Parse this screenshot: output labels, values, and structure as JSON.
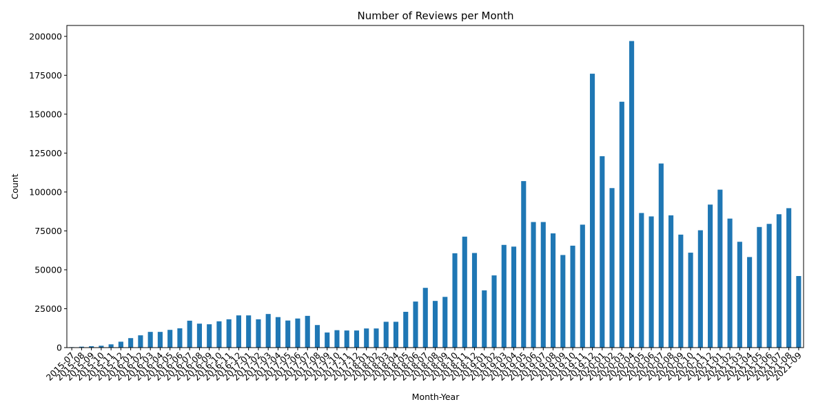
{
  "chart_data": {
    "type": "bar",
    "title": "Number of Reviews per Month",
    "xlabel": "Month-Year",
    "ylabel": "Count",
    "ylim": [
      0,
      207000
    ],
    "yticks": [
      0,
      25000,
      50000,
      75000,
      100000,
      125000,
      150000,
      175000,
      200000
    ],
    "grid": false,
    "bar_color": "#1f77b4",
    "categories": [
      "2015-07",
      "2015-08",
      "2015-09",
      "2015-10",
      "2015-11",
      "2015-12",
      "2016-01",
      "2016-02",
      "2016-03",
      "2016-04",
      "2016-05",
      "2016-06",
      "2016-07",
      "2016-08",
      "2016-09",
      "2016-10",
      "2016-11",
      "2016-12",
      "2017-01",
      "2017-02",
      "2017-03",
      "2017-04",
      "2017-05",
      "2017-06",
      "2017-07",
      "2017-08",
      "2017-09",
      "2017-10",
      "2017-11",
      "2017-12",
      "2018-01",
      "2018-02",
      "2018-03",
      "2018-04",
      "2018-05",
      "2018-06",
      "2018-07",
      "2018-08",
      "2018-09",
      "2018-10",
      "2018-11",
      "2018-12",
      "2019-01",
      "2019-02",
      "2019-03",
      "2019-04",
      "2019-05",
      "2019-06",
      "2019-07",
      "2019-08",
      "2019-09",
      "2019-10",
      "2019-11",
      "2019-12",
      "2020-01",
      "2020-02",
      "2020-03",
      "2020-04",
      "2020-05",
      "2020-06",
      "2020-07",
      "2020-08",
      "2020-09",
      "2020-10",
      "2020-11",
      "2020-12",
      "2021-01",
      "2021-02",
      "2021-03",
      "2021-04",
      "2021-05",
      "2021-06",
      "2021-07",
      "2021-08",
      "2021-09"
    ],
    "values": [
      300,
      600,
      900,
      1200,
      2100,
      3800,
      6100,
      7900,
      10100,
      10100,
      11400,
      12400,
      17300,
      15400,
      15000,
      16900,
      18200,
      20700,
      20700,
      18200,
      21600,
      19600,
      17400,
      18700,
      20400,
      14500,
      9700,
      11200,
      11000,
      11000,
      12300,
      12300,
      16600,
      16600,
      23000,
      29600,
      38400,
      30000,
      32600,
      60600,
      71300,
      60800,
      36800,
      46400,
      66000,
      64900,
      107000,
      80700,
      80700,
      73400,
      59500,
      65500,
      79000,
      176000,
      123000,
      102500,
      158000,
      197000,
      86500,
      84300,
      118300,
      85000,
      72600,
      61000,
      75400,
      91900,
      101500,
      82900,
      68000,
      58200,
      77500,
      79500,
      85700,
      89600,
      46000
    ]
  }
}
